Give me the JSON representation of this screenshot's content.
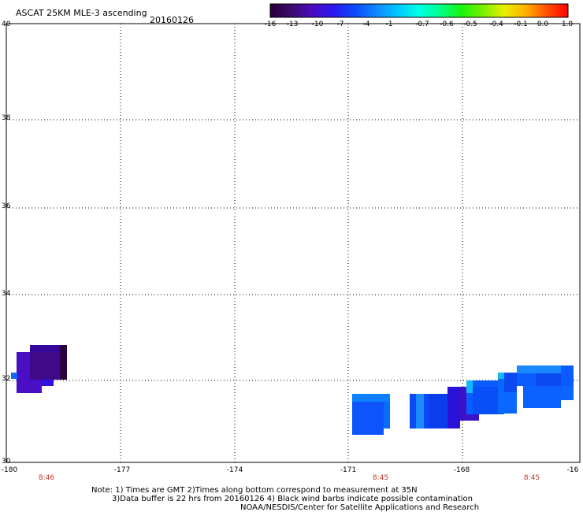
{
  "header": {
    "title": "ASCAT 25KM MLE-3 ascending",
    "date": "20160126"
  },
  "colorbar": {
    "labels": [
      "-16",
      "-13",
      "-10",
      "-7",
      "-4",
      "-1",
      "-0.7",
      "-0.6",
      "-0.5",
      "-0.4",
      "-0.1",
      "0.0",
      "1.0"
    ],
    "colors": [
      "#2a003d",
      "#3d0a6b",
      "#4b0cc2",
      "#2a1af0",
      "#0b4cf7",
      "#0e88ff",
      "#00c8ff",
      "#00ffe5",
      "#00ff8a",
      "#18f30a",
      "#7af000",
      "#e8f000",
      "#ffb000",
      "#ff5000",
      "#ff0000"
    ]
  },
  "map": {
    "y_ticks": [
      "40",
      "38",
      "36",
      "34",
      "32",
      "30"
    ],
    "x_ticks": [
      "-180",
      "-177",
      "-174",
      "-171",
      "-168",
      "-16"
    ],
    "times": [
      "8:46",
      "8:45",
      "8:45"
    ]
  },
  "notes": {
    "line1": "Note: 1) Times are GMT 2)Times along bottom correspond to measurement at 35N",
    "line2": "3)Data buffer is 22 hrs from 20160126 4) Black wind barbs indicate possible contamination",
    "line3": "NOAA/NESDIS/Center for Satellite Applications and Research"
  }
}
